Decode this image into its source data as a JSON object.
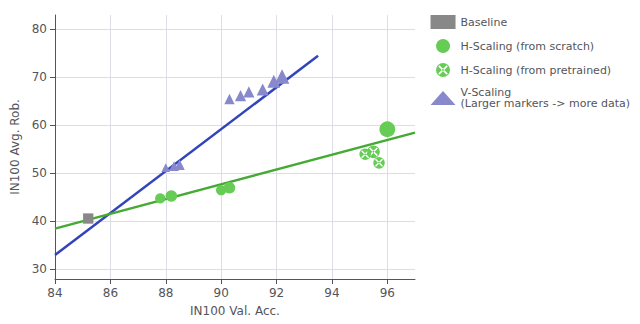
{
  "chart_data": {
    "type": "scatter",
    "xlabel": "IN100 Val. Acc.",
    "ylabel": "IN100 Avg. Rob.",
    "xlim": [
      84,
      97
    ],
    "ylim": [
      28,
      83
    ],
    "xticks": [
      84,
      86,
      88,
      90,
      92,
      94,
      96
    ],
    "yticks": [
      30,
      40,
      50,
      60,
      70,
      80
    ],
    "grid": true,
    "legend": "right",
    "series": [
      {
        "type": "line",
        "color": "#3344bb",
        "x": [
          84.0,
          93.5
        ],
        "values": [
          33.0,
          74.5
        ]
      },
      {
        "type": "line",
        "color": "#44aa33",
        "x": [
          84.0,
          97.0
        ],
        "values": [
          38.5,
          58.5
        ]
      },
      {
        "type": "scatter",
        "name": "Baseline",
        "color": "#888888",
        "marker": "square",
        "x": [
          85.2
        ],
        "values": [
          40.6
        ],
        "sizes": [
          55
        ]
      },
      {
        "type": "scatter",
        "name": "H-Scaling (from scratch)",
        "color": "#66cc55",
        "marker": "circle",
        "x": [
          87.8,
          88.2,
          90.0,
          90.3,
          96.0
        ],
        "values": [
          44.8,
          45.3,
          46.5,
          47.0,
          59.2
        ],
        "sizes": [
          55,
          70,
          55,
          70,
          130
        ]
      },
      {
        "type": "scatter",
        "name": "H-Scaling (from pretrained)",
        "color": "#66cc55",
        "marker": "circle_x",
        "x": [
          95.2,
          95.5,
          95.7
        ],
        "values": [
          54.0,
          54.5,
          52.2
        ],
        "sizes": [
          70,
          85,
          70
        ]
      },
      {
        "type": "scatter",
        "name": "V-Scaling\n(Larger markers -> more data)",
        "color": "#8888cc",
        "marker": "triangle",
        "x": [
          88.0,
          88.3,
          88.5,
          90.3,
          90.7,
          91.0,
          91.5,
          91.9,
          92.2
        ],
        "values": [
          51.2,
          51.5,
          51.8,
          65.5,
          66.2,
          67.0,
          67.5,
          69.2,
          70.2
        ],
        "sizes": [
          40,
          50,
          55,
          55,
          65,
          65,
          75,
          85,
          110
        ]
      }
    ]
  }
}
